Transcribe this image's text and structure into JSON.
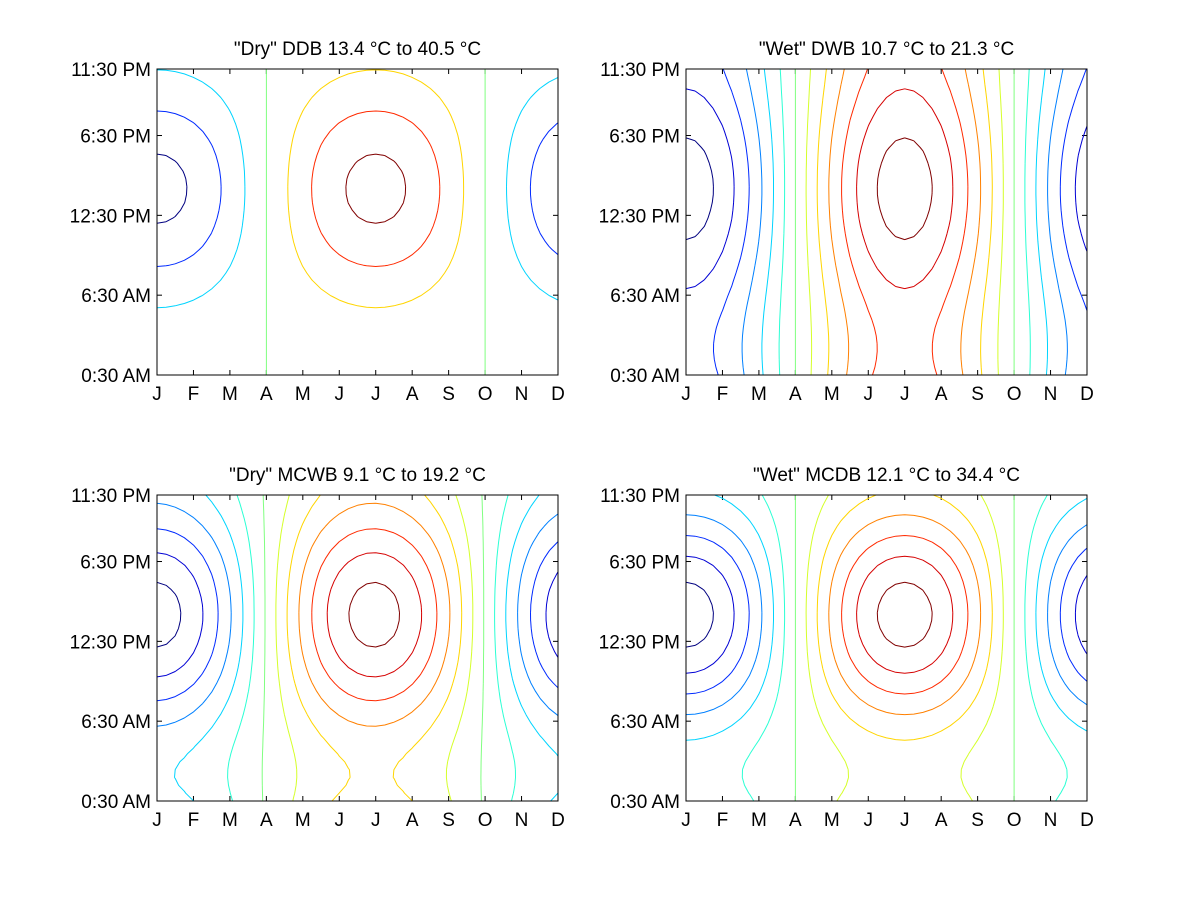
{
  "chart_data": [
    {
      "type": "contour",
      "title": "\"Dry\" DDB  13.4 °C to  40.5 °C",
      "range_min_c": 13.4,
      "range_max_c": 40.5,
      "x_tick_labels": [
        "J",
        "F",
        "M",
        "A",
        "M",
        "J",
        "J",
        "A",
        "S",
        "O",
        "N",
        "D"
      ],
      "y_tick_labels": [
        "0:30 AM",
        "6:30 AM",
        "12:30 PM",
        "6:30 PM",
        "11:30 PM"
      ],
      "x_range": [
        1,
        12
      ],
      "y_range_hours": [
        0.5,
        23.5
      ],
      "n_levels": 7,
      "seasonal_amplitude": 0.5,
      "diurnal_amplitude": 0.35,
      "asymmetry": 0,
      "grid": false
    },
    {
      "type": "contour",
      "title": "\"Wet\" DWB  10.7 °C to  21.3 °C",
      "range_min_c": 10.7,
      "range_max_c": 21.3,
      "x_tick_labels": [
        "J",
        "F",
        "M",
        "A",
        "M",
        "J",
        "J",
        "A",
        "S",
        "O",
        "N",
        "D"
      ],
      "y_tick_labels": [
        "0:30 AM",
        "6:30 AM",
        "12:30 PM",
        "6:30 PM",
        "11:30 PM"
      ],
      "x_range": [
        1,
        12
      ],
      "y_range_hours": [
        0.5,
        23.5
      ],
      "n_levels": 13,
      "seasonal_amplitude": 0.75,
      "diurnal_amplitude": 0.15,
      "asymmetry": 0,
      "grid": false
    },
    {
      "type": "contour",
      "title": "\"Dry\" MCWB   9.1 °C to  19.2 °C",
      "range_min_c": 9.1,
      "range_max_c": 19.2,
      "x_tick_labels": [
        "J",
        "F",
        "M",
        "A",
        "M",
        "J",
        "J",
        "A",
        "S",
        "O",
        "N",
        "D"
      ],
      "y_tick_labels": [
        "0:30 AM",
        "6:30 AM",
        "12:30 PM",
        "6:30 PM",
        "11:30 PM"
      ],
      "x_range": [
        1,
        12
      ],
      "y_range_hours": [
        0.5,
        23.5
      ],
      "n_levels": 13,
      "seasonal_amplitude": 0.6,
      "diurnal_amplitude": 0.3,
      "asymmetry": 0.1,
      "grid": false
    },
    {
      "type": "contour",
      "title": "\"Wet\" MCDB  12.1 °C to  34.4 °C",
      "range_min_c": 12.1,
      "range_max_c": 34.4,
      "x_tick_labels": [
        "J",
        "F",
        "M",
        "A",
        "M",
        "J",
        "J",
        "A",
        "S",
        "O",
        "N",
        "D"
      ],
      "y_tick_labels": [
        "0:30 AM",
        "6:30 AM",
        "12:30 PM",
        "6:30 PM",
        "11:30 PM"
      ],
      "x_range": [
        1,
        12
      ],
      "y_range_hours": [
        0.5,
        23.5
      ],
      "n_levels": 13,
      "seasonal_amplitude": 0.55,
      "diurnal_amplitude": 0.35,
      "asymmetry": 0,
      "grid": false
    }
  ],
  "colors": {
    "colormap": "jet",
    "frame": "#000000",
    "background": "#ffffff"
  }
}
